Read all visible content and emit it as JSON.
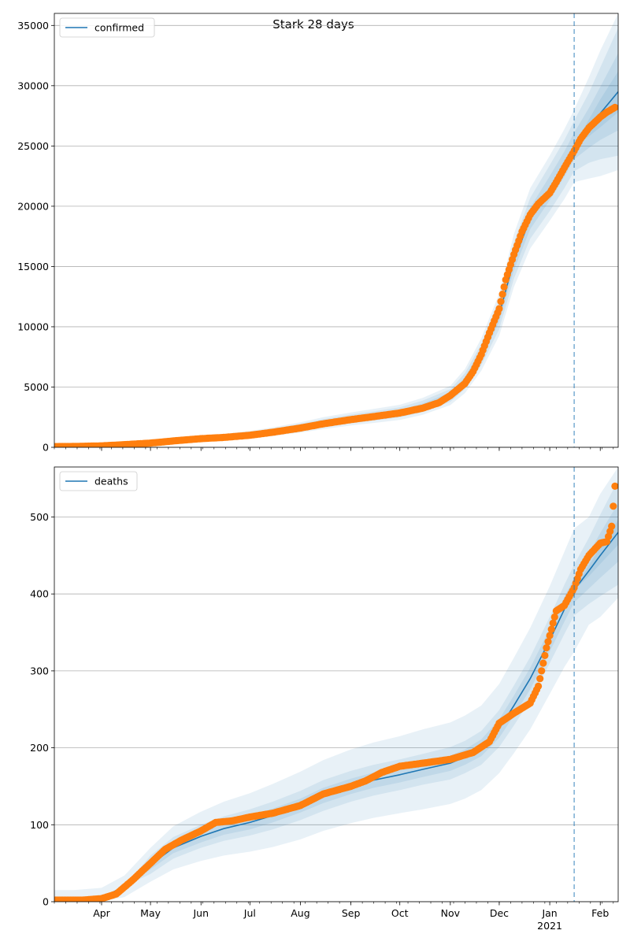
{
  "title": "Stark 28 days",
  "colors": {
    "model": "#1f77b4",
    "observed": "#ff7f0e",
    "band": "#1f77b4",
    "grid": "#b0b0b0"
  },
  "chart_data": [
    {
      "type": "line",
      "legend": "confirmed",
      "legend_position": "upper-left",
      "grid": true,
      "ylim": [
        0,
        36000
      ],
      "yticks": [
        0,
        5000,
        10000,
        15000,
        20000,
        25000,
        30000,
        35000
      ],
      "xlim": [
        "2020-03-03",
        "2021-02-12"
      ],
      "forecast_start": "2021-01-16",
      "model_x": [
        "2020-03-03",
        "2020-03-15",
        "2020-04-01",
        "2020-04-15",
        "2020-05-01",
        "2020-05-15",
        "2020-06-01",
        "2020-06-15",
        "2020-07-01",
        "2020-07-15",
        "2020-08-01",
        "2020-08-15",
        "2020-09-01",
        "2020-09-15",
        "2020-10-01",
        "2020-10-15",
        "2020-11-01",
        "2020-11-10",
        "2020-11-20",
        "2020-12-01",
        "2020-12-10",
        "2020-12-20",
        "2021-01-01",
        "2021-01-10",
        "2021-01-16",
        "2021-01-25",
        "2021-02-01",
        "2021-02-12"
      ],
      "model_y": [
        60,
        70,
        100,
        200,
        400,
        550,
        750,
        850,
        1050,
        1300,
        1650,
        2000,
        2350,
        2600,
        2900,
        3400,
        4300,
        5500,
        7700,
        11000,
        15500,
        19000,
        21500,
        23500,
        25000,
        26500,
        27700,
        29500
      ],
      "band_half_widths": [
        [
          0,
          0,
          0,
          0,
          0,
          0,
          0,
          0,
          0,
          0,
          0,
          0,
          0,
          0,
          0,
          0,
          0,
          0,
          0,
          0,
          0,
          0,
          0,
          0,
          0,
          700,
          1150,
          1700
        ],
        [
          0,
          0,
          0,
          0,
          40,
          60,
          80,
          90,
          100,
          120,
          150,
          170,
          180,
          190,
          200,
          230,
          260,
          330,
          450,
          600,
          800,
          900,
          1000,
          1050,
          1100,
          1650,
          2200,
          3200
        ],
        [
          0,
          0,
          0,
          0,
          80,
          110,
          150,
          170,
          200,
          240,
          290,
          330,
          360,
          380,
          420,
          470,
          530,
          660,
          900,
          1200,
          1500,
          1700,
          1900,
          2000,
          2100,
          2900,
          3800,
          5300
        ],
        [
          30,
          30,
          40,
          60,
          120,
          170,
          220,
          260,
          300,
          360,
          430,
          500,
          540,
          580,
          630,
          700,
          800,
          1000,
          1350,
          1750,
          2200,
          2500,
          2700,
          2900,
          3000,
          4200,
          5200,
          6500
        ]
      ],
      "observed_x": [
        "2020-03-03",
        "2020-03-15",
        "2020-04-01",
        "2020-04-15",
        "2020-05-01",
        "2020-05-15",
        "2020-06-01",
        "2020-06-15",
        "2020-07-01",
        "2020-07-15",
        "2020-08-01",
        "2020-08-15",
        "2020-09-01",
        "2020-09-15",
        "2020-10-01",
        "2020-10-15",
        "2020-10-25",
        "2020-11-01",
        "2020-11-10",
        "2020-11-15",
        "2020-11-20",
        "2020-11-25",
        "2020-12-01",
        "2020-12-05",
        "2020-12-10",
        "2020-12-15",
        "2020-12-20",
        "2020-12-25",
        "2021-01-01",
        "2021-01-05",
        "2021-01-10",
        "2021-01-16",
        "2021-01-20",
        "2021-01-25",
        "2021-02-01",
        "2021-02-05",
        "2021-02-10"
      ],
      "observed_y": [
        60,
        70,
        120,
        220,
        350,
        530,
        720,
        820,
        1000,
        1250,
        1600,
        1950,
        2300,
        2550,
        2850,
        3250,
        3700,
        4300,
        5300,
        6300,
        7700,
        9500,
        11500,
        13900,
        16000,
        17900,
        19300,
        20200,
        21100,
        22000,
        23200,
        24600,
        25600,
        26500,
        27400,
        27800,
        28200
      ]
    },
    {
      "type": "line",
      "legend": "deaths",
      "legend_position": "upper-left",
      "grid": true,
      "ylim": [
        0,
        565
      ],
      "yticks": [
        0,
        100,
        200,
        300,
        400,
        500
      ],
      "xlim": [
        "2020-03-03",
        "2021-02-12"
      ],
      "forecast_start": "2021-01-16",
      "x_ticks": [
        {
          "date": "2020-04-01",
          "label": "Apr"
        },
        {
          "date": "2020-05-01",
          "label": "May"
        },
        {
          "date": "2020-06-01",
          "label": "Jun"
        },
        {
          "date": "2020-07-01",
          "label": "Jul"
        },
        {
          "date": "2020-08-01",
          "label": "Aug"
        },
        {
          "date": "2020-09-01",
          "label": "Sep"
        },
        {
          "date": "2020-10-01",
          "label": "Oct"
        },
        {
          "date": "2020-11-01",
          "label": "Nov"
        },
        {
          "date": "2020-12-01",
          "label": "Dec"
        },
        {
          "date": "2021-01-01",
          "label": "Jan",
          "sublabel": "2021"
        },
        {
          "date": "2021-02-01",
          "label": "Feb"
        }
      ],
      "model_x": [
        "2020-03-03",
        "2020-03-15",
        "2020-04-01",
        "2020-04-15",
        "2020-05-01",
        "2020-05-15",
        "2020-06-01",
        "2020-06-15",
        "2020-07-01",
        "2020-07-15",
        "2020-08-01",
        "2020-08-15",
        "2020-09-01",
        "2020-09-15",
        "2020-10-01",
        "2020-10-15",
        "2020-11-01",
        "2020-11-10",
        "2020-11-20",
        "2020-12-01",
        "2020-12-10",
        "2020-12-20",
        "2021-01-01",
        "2021-01-10",
        "2021-01-16",
        "2021-01-25",
        "2021-02-01",
        "2021-02-12"
      ],
      "model_y": [
        2,
        2,
        5,
        20,
        48,
        70,
        85,
        95,
        103,
        112,
        125,
        138,
        150,
        158,
        165,
        172,
        180,
        188,
        200,
        225,
        255,
        290,
        340,
        380,
        405,
        430,
        450,
        480
      ],
      "band_half_widths": [
        [
          0,
          0,
          0,
          0,
          0,
          0,
          0,
          0,
          0,
          0,
          0,
          0,
          0,
          0,
          0,
          0,
          0,
          0,
          0,
          0,
          0,
          0,
          0,
          0,
          0,
          7,
          11,
          16
        ],
        [
          0,
          0,
          0,
          0,
          6,
          7,
          8,
          8,
          9,
          9,
          9,
          10,
          10,
          10,
          10,
          10,
          10,
          10,
          11,
          12,
          13,
          14,
          15,
          16,
          16,
          23,
          29,
          38
        ],
        [
          0,
          0,
          0,
          0,
          12,
          14,
          15,
          16,
          17,
          18,
          19,
          20,
          20,
          20,
          20,
          20,
          21,
          21,
          22,
          24,
          26,
          28,
          30,
          32,
          33,
          43,
          53,
          68
        ],
        [
          13,
          13,
          13,
          14,
          22,
          28,
          32,
          35,
          38,
          41,
          44,
          46,
          48,
          49,
          50,
          52,
          53,
          54,
          55,
          58,
          62,
          66,
          70,
          75,
          80,
          70,
          80,
          85
        ]
      ],
      "observed_x": [
        "2020-03-03",
        "2020-03-20",
        "2020-04-01",
        "2020-04-10",
        "2020-04-20",
        "2020-05-01",
        "2020-05-10",
        "2020-05-20",
        "2020-06-01",
        "2020-06-10",
        "2020-06-20",
        "2020-07-01",
        "2020-07-15",
        "2020-08-01",
        "2020-08-15",
        "2020-09-01",
        "2020-09-10",
        "2020-09-20",
        "2020-10-01",
        "2020-10-15",
        "2020-11-01",
        "2020-11-15",
        "2020-11-25",
        "2020-12-01",
        "2020-12-10",
        "2020-12-20",
        "2020-12-25",
        "2020-12-30",
        "2021-01-05",
        "2021-01-10",
        "2021-01-16",
        "2021-01-20",
        "2021-01-25",
        "2021-02-01",
        "2021-02-05",
        "2021-02-08",
        "2021-02-10"
      ],
      "observed_y": [
        2,
        2,
        4,
        10,
        28,
        50,
        68,
        80,
        92,
        103,
        105,
        110,
        115,
        125,
        140,
        150,
        157,
        168,
        176,
        180,
        185,
        194,
        208,
        232,
        245,
        258,
        280,
        330,
        378,
        385,
        408,
        432,
        450,
        466,
        468,
        488,
        540
      ]
    }
  ]
}
